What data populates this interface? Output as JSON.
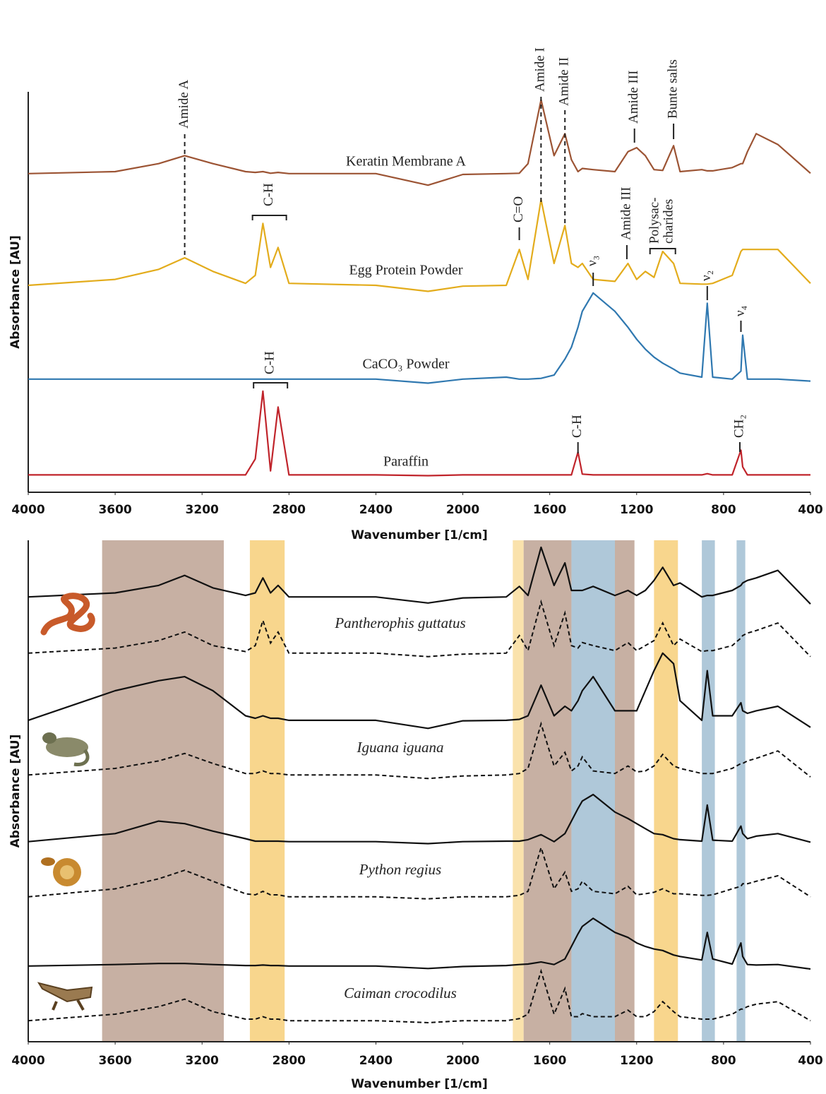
{
  "chart_data": [
    {
      "type": "line",
      "xlabel": "Wavenumber [1/cm]",
      "ylabel": "Absorbance [AU]",
      "xlim": [
        4000,
        400
      ],
      "ylim": [
        0,
        100
      ],
      "xticks": [
        4000,
        3600,
        3200,
        2800,
        2400,
        2000,
        1600,
        1200,
        800,
        400
      ],
      "x": [
        4000,
        3600,
        3400,
        3280,
        3150,
        3000,
        2955,
        2920,
        2885,
        2850,
        2800,
        2400,
        2160,
        2000,
        1800,
        1740,
        1700,
        1640,
        1580,
        1530,
        1500,
        1470,
        1450,
        1400,
        1300,
        1240,
        1200,
        1160,
        1120,
        1080,
        1030,
        1000,
        900,
        875,
        850,
        760,
        720,
        712,
        690,
        650,
        550,
        400
      ],
      "series": [
        {
          "name": "Keratin Membrane A",
          "color": "#9c5434",
          "values": [
            79.5,
            80,
            82,
            84,
            82,
            80,
            79.8,
            80,
            79.6,
            79.8,
            79.5,
            79.5,
            76.6,
            79.3,
            79.5,
            79.6,
            82,
            98,
            84,
            89.5,
            83,
            80,
            80.8,
            80.5,
            80,
            85,
            86,
            84,
            80.5,
            80.3,
            86.5,
            80,
            80.5,
            80.2,
            80.2,
            81,
            82,
            82,
            85,
            89.5,
            86.8,
            79.6
          ]
        },
        {
          "name": "Egg Protein Powder",
          "color": "#e3ac1c",
          "values": [
            51.5,
            53,
            55.5,
            58.4,
            55,
            52,
            54,
            67,
            56,
            61,
            52,
            51.5,
            50,
            51.3,
            51.5,
            60.5,
            53,
            73,
            57,
            66.5,
            57,
            56,
            57,
            53,
            52.5,
            57,
            53,
            55,
            53.5,
            60,
            57,
            52,
            51.8,
            51.8,
            52,
            54,
            60,
            60.5,
            60.5,
            60.5,
            60.5,
            52
          ]
        },
        {
          "name": "CaCO₃ Powder",
          "color": "#2f78b0",
          "values": [
            28,
            28,
            28,
            28,
            28,
            28,
            28,
            28,
            28,
            28,
            28,
            28,
            27,
            28,
            28.5,
            28,
            28,
            28.2,
            29,
            33,
            36,
            41,
            45,
            49.6,
            45,
            41,
            38,
            35.5,
            33.5,
            32,
            30.5,
            29.5,
            28.5,
            47,
            28.5,
            28,
            30,
            39,
            28,
            28,
            28,
            27.5
          ]
        },
        {
          "name": "Paraffin",
          "color": "#c0242b",
          "values": [
            4,
            4,
            4,
            4,
            4,
            4,
            8,
            25,
            5,
            21,
            4,
            4,
            3.8,
            4,
            4,
            4,
            4,
            4,
            4,
            4,
            4,
            9.7,
            4.2,
            4,
            4,
            4,
            4,
            4,
            4,
            4,
            4,
            4,
            4,
            4.3,
            4,
            4,
            10.2,
            6,
            4,
            4,
            4,
            4
          ]
        }
      ],
      "annotations": [
        {
          "text": "Amide A",
          "x": 3280
        },
        {
          "text": "Amide I",
          "x": 1640
        },
        {
          "text": "Amide II",
          "x": 1530
        },
        {
          "text": "Amide III",
          "x": 1210
        },
        {
          "text": "Bunte salts",
          "x": 1030
        },
        {
          "text": "C-H",
          "x": 2890
        },
        {
          "text": "C=O",
          "x": 1740
        },
        {
          "text": "Amide III",
          "x": 1245
        },
        {
          "text": "Polysac-\ncharides",
          "x": 1080
        },
        {
          "text": "ν₃",
          "x": 1400
        },
        {
          "text": "ν₂",
          "x": 875
        },
        {
          "text": "ν₄",
          "x": 720
        },
        {
          "text": "C-H",
          "x": 2885
        },
        {
          "text": "C-H",
          "x": 1470
        },
        {
          "text": "CH₂",
          "x": 725
        }
      ]
    },
    {
      "type": "line",
      "xlabel": "Wavenumber [1/cm]",
      "ylabel": "Absorbance [AU]",
      "xlim": [
        4000,
        400
      ],
      "ylim": [
        0,
        100
      ],
      "xticks": [
        4000,
        3600,
        3200,
        2800,
        2400,
        2000,
        1600,
        1200,
        800,
        400
      ],
      "bands": [
        {
          "from": 3660,
          "to": 3100,
          "color": "#b49684"
        },
        {
          "from": 2980,
          "to": 2820,
          "color": "#f6c867"
        },
        {
          "from": 1770,
          "to": 1720,
          "color": "#f8d890"
        },
        {
          "from": 1720,
          "to": 1500,
          "color": "#b49684"
        },
        {
          "from": 1500,
          "to": 1300,
          "color": "#94b6cc"
        },
        {
          "from": 1300,
          "to": 1210,
          "color": "#b49684"
        },
        {
          "from": 1120,
          "to": 1010,
          "color": "#f6c867"
        },
        {
          "from": 900,
          "to": 840,
          "color": "#94b6cc"
        },
        {
          "from": 740,
          "to": 700,
          "color": "#94b6cc"
        }
      ],
      "x": [
        4000,
        3600,
        3400,
        3280,
        3150,
        3000,
        2955,
        2920,
        2885,
        2850,
        2800,
        2400,
        2160,
        2000,
        1800,
        1740,
        1700,
        1640,
        1580,
        1530,
        1500,
        1470,
        1450,
        1400,
        1300,
        1240,
        1200,
        1160,
        1120,
        1080,
        1030,
        1000,
        900,
        875,
        850,
        760,
        720,
        712,
        690,
        650,
        550,
        400
      ],
      "series": [
        {
          "name": "Pantherophis guttatus",
          "color": "#111111",
          "values": [
            88.7,
            89.5,
            91,
            93,
            90.5,
            89,
            89.5,
            92.5,
            89.5,
            91,
            88.7,
            88.7,
            87.5,
            88.5,
            88.7,
            90.8,
            89,
            98.6,
            91,
            95.5,
            90,
            90,
            90,
            90.8,
            89,
            90,
            89,
            90,
            92,
            94.6,
            91,
            91.5,
            88.7,
            89,
            89,
            90,
            91,
            91.5,
            92,
            92.5,
            94,
            87.3
          ],
          "dashed_values": [
            77.5,
            78.5,
            80,
            81.7,
            79,
            77.8,
            79,
            84,
            79.5,
            81.7,
            77.5,
            77.5,
            76.8,
            77.3,
            77.5,
            81,
            78,
            87.7,
            79,
            85.5,
            79,
            78.5,
            79.6,
            79,
            78,
            79.6,
            78,
            79,
            80,
            83.5,
            79,
            80.3,
            77.8,
            78,
            78,
            79,
            80.5,
            81,
            81.5,
            82,
            83.5,
            76.8
          ]
        },
        {
          "name": "Iguana iguana",
          "color": "#111111",
          "values": [
            64.1,
            70,
            72,
            72.8,
            70,
            65,
            64.5,
            65,
            64.5,
            64.5,
            64.1,
            64.1,
            62.5,
            64,
            64.1,
            64.3,
            65,
            71.1,
            65,
            66.9,
            66,
            68,
            70,
            72.8,
            66,
            66,
            66,
            70,
            74,
            77.5,
            75.4,
            68,
            64.1,
            74,
            65,
            65,
            67.6,
            66,
            65.5,
            66,
            66.9,
            62.7
          ],
          "dashed_values": [
            53.2,
            54.5,
            56,
            57.5,
            55.5,
            53.5,
            53.5,
            54,
            53.5,
            53.5,
            53.2,
            53.2,
            52.5,
            53,
            53.2,
            53.5,
            54.5,
            63.4,
            55,
            57.7,
            54,
            55,
            56.8,
            54,
            53.5,
            55,
            53.8,
            54,
            55,
            57.3,
            55,
            54.5,
            53.5,
            53.5,
            53.5,
            54.5,
            55.5,
            55.5,
            56,
            56.5,
            58,
            52.8
          ]
        },
        {
          "name": "Python regius",
          "color": "#111111",
          "values": [
            39.9,
            41.5,
            44,
            43.5,
            42,
            40.5,
            40,
            40,
            40,
            40,
            39.9,
            39.9,
            39.5,
            39.9,
            40,
            40,
            40.3,
            41.3,
            39.9,
            41.5,
            44,
            46.5,
            48,
            49.3,
            45.8,
            44.5,
            43.5,
            42.5,
            41.5,
            41.3,
            40.5,
            40.3,
            40,
            47.2,
            40.2,
            40,
            43,
            41.5,
            40.5,
            41,
            41.5,
            39.8
          ],
          "dashed_values": [
            28.9,
            30.5,
            32.5,
            34.2,
            32,
            29.5,
            29.3,
            30,
            29.3,
            29.3,
            28.9,
            28.9,
            28.5,
            28.9,
            28.9,
            29.2,
            30,
            38.7,
            30.5,
            33.8,
            30,
            30.5,
            32,
            30,
            29.5,
            31,
            29.3,
            29.5,
            29.8,
            30.5,
            29.5,
            29.5,
            29.2,
            29.2,
            29.3,
            30.5,
            31,
            31.5,
            31.5,
            32,
            33.1,
            28.9
          ]
        },
        {
          "name": "Caiman crocodilus",
          "color": "#111111",
          "values": [
            15.1,
            15.4,
            15.6,
            15.6,
            15.4,
            15.2,
            15.2,
            15.3,
            15.2,
            15.2,
            15.1,
            15.1,
            14.6,
            15,
            15.2,
            15.4,
            15.5,
            15.9,
            15.4,
            16.5,
            19,
            21.5,
            23,
            24.6,
            21.8,
            20.8,
            19.7,
            19,
            18.5,
            18.2,
            17.3,
            17,
            16.3,
            21.8,
            16.5,
            15.5,
            19.7,
            17,
            15.4,
            15.3,
            15.4,
            14.5
          ],
          "dashed_values": [
            4.2,
            5.5,
            7,
            8.5,
            6,
            4.5,
            4.5,
            5,
            4.5,
            4.5,
            4.2,
            4.2,
            3.8,
            4.2,
            4.2,
            4.6,
            5.5,
            14.1,
            5.5,
            10.6,
            5,
            5,
            5.6,
            5,
            5,
            6.3,
            5,
            5,
            6,
            8,
            6,
            5,
            4.5,
            4.5,
            4.5,
            5.5,
            6.5,
            6.5,
            7,
            7.5,
            8,
            4.2
          ]
        }
      ]
    }
  ]
}
